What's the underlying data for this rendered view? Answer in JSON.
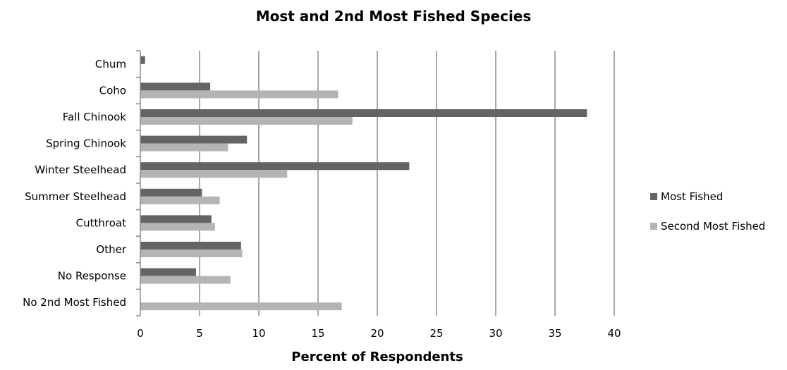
{
  "chart_data": {
    "type": "bar",
    "orientation": "horizontal",
    "title": "Most and 2nd Most Fished Species",
    "xlabel": "Percent of Respondents",
    "ylabel": "",
    "xlim": [
      0,
      40
    ],
    "xticks": [
      "0",
      "5",
      "10",
      "15",
      "20",
      "25",
      "30",
      "35",
      "40"
    ],
    "grid": true,
    "legend_position": "right",
    "categories": [
      "Chum",
      "Coho",
      "Fall Chinook",
      "Spring Chinook",
      "Winter Steelhead",
      "Summer Steelhead",
      "Cutthroat",
      "Other",
      "No Response",
      "No 2nd Most Fished"
    ],
    "series": [
      {
        "name": "Most Fished",
        "color": "#646464",
        "values": [
          0.4,
          5.9,
          37.7,
          9.0,
          22.7,
          5.2,
          6.0,
          8.5,
          4.7,
          0
        ]
      },
      {
        "name": "Second Most Fished",
        "color": "#b4b4b4",
        "values": [
          0,
          16.7,
          17.9,
          7.4,
          12.4,
          6.7,
          6.3,
          8.6,
          7.6,
          17.0
        ]
      }
    ]
  }
}
